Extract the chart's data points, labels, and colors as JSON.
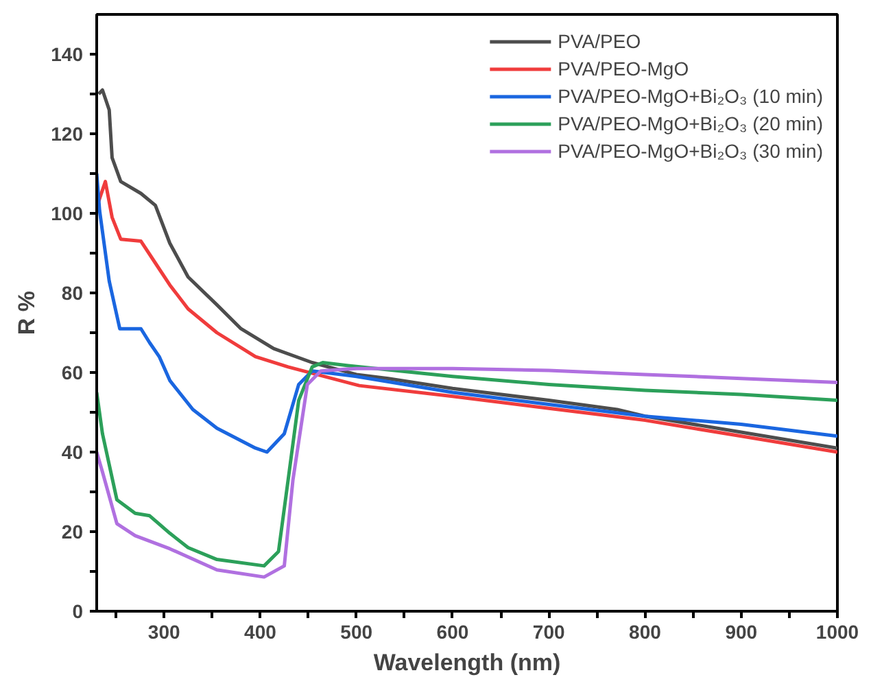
{
  "chart_data": {
    "type": "line",
    "xlabel": "Wavelength (nm)",
    "ylabel": "R %",
    "xlim": [
      230,
      1000
    ],
    "ylim": [
      0,
      150
    ],
    "xticks": [
      {
        "value": 250,
        "label": null
      },
      300,
      {
        "value": 350,
        "label": null
      },
      400,
      {
        "value": 450,
        "label": null
      },
      500,
      {
        "value": 550,
        "label": null
      },
      600,
      {
        "value": 650,
        "label": null
      },
      700,
      {
        "value": 750,
        "label": null
      },
      800,
      {
        "value": 850,
        "label": null
      },
      900,
      {
        "value": 950,
        "label": null
      },
      1000
    ],
    "yticks": [
      0,
      {
        "value": 10,
        "label": null
      },
      20,
      {
        "value": 30,
        "label": null
      },
      40,
      {
        "value": 50,
        "label": null
      },
      60,
      {
        "value": 70,
        "label": null
      },
      80,
      {
        "value": 90,
        "label": null
      },
      100,
      {
        "value": 110,
        "label": null
      },
      120,
      {
        "value": 130,
        "label": null
      },
      140
    ],
    "grid": false,
    "legend": "top right",
    "line_style": "solid",
    "marker": "none",
    "series": [
      {
        "name": "PVA/PEO",
        "color": "#4d4d4d",
        "x": [
          232,
          236,
          243,
          246,
          255,
          276,
          291,
          306,
          325,
          355,
          380,
          414,
          454,
          500,
          533,
          600,
          633,
          700,
          771,
          800,
          900,
          1000
        ],
        "values": [
          130,
          131,
          126,
          114,
          108,
          105,
          102,
          92.5,
          84,
          77,
          71,
          66,
          62.5,
          59.5,
          58.5,
          56,
          55,
          53,
          50.7,
          49,
          45,
          41
        ]
      },
      {
        "name": "PVA/PEO-MgO",
        "color": "#f03c3c",
        "x": [
          232,
          239,
          246,
          255,
          276,
          291,
          306,
          325,
          355,
          395,
          429,
          503,
          600,
          700,
          800,
          900,
          1000
        ],
        "values": [
          103,
          108,
          99,
          93.5,
          93,
          87.5,
          82,
          76,
          70,
          64,
          61.4,
          56.7,
          54,
          51,
          48,
          44,
          40
        ]
      },
      {
        "name": "PVA/PEO-MgO+Bi₂O₃ (10 min)",
        "color": "#1a66e0",
        "x": [
          230,
          233,
          243,
          254,
          276,
          285,
          295,
          306,
          330,
          355,
          395,
          407,
          425,
          440,
          454,
          500,
          600,
          700,
          800,
          900,
          1000
        ],
        "values": [
          110,
          100.7,
          83,
          71,
          71,
          67.5,
          64,
          58,
          50.7,
          46,
          41,
          40,
          44.6,
          57,
          60.4,
          59,
          55,
          52,
          49,
          47,
          44
        ]
      },
      {
        "name": "PVA/PEO-MgO+Bi₂O₃ (20 min)",
        "color": "#2ca05a",
        "x": [
          230,
          236,
          251,
          270,
          285,
          306,
          325,
          355,
          404,
          419,
          429,
          440,
          454,
          465,
          500,
          600,
          700,
          800,
          900,
          1000
        ],
        "values": [
          55,
          44.6,
          28,
          24.6,
          24,
          19.6,
          16,
          13,
          11.4,
          15,
          33,
          53,
          61.4,
          62.5,
          61.5,
          59,
          57,
          55.5,
          54.5,
          53
        ]
      },
      {
        "name": "PVA/PEO-MgO+Bi₂O₃ (30 min)",
        "color": "#b070e0",
        "x": [
          230,
          236,
          251,
          270,
          306,
          355,
          404,
          425,
          434,
          449,
          463,
          500,
          600,
          700,
          800,
          900,
          1000
        ],
        "values": [
          40,
          35,
          22,
          19,
          15.7,
          10.4,
          8.6,
          11.4,
          33,
          57,
          60.4,
          61,
          61,
          60.5,
          59.5,
          58.5,
          57.5
        ]
      }
    ]
  }
}
